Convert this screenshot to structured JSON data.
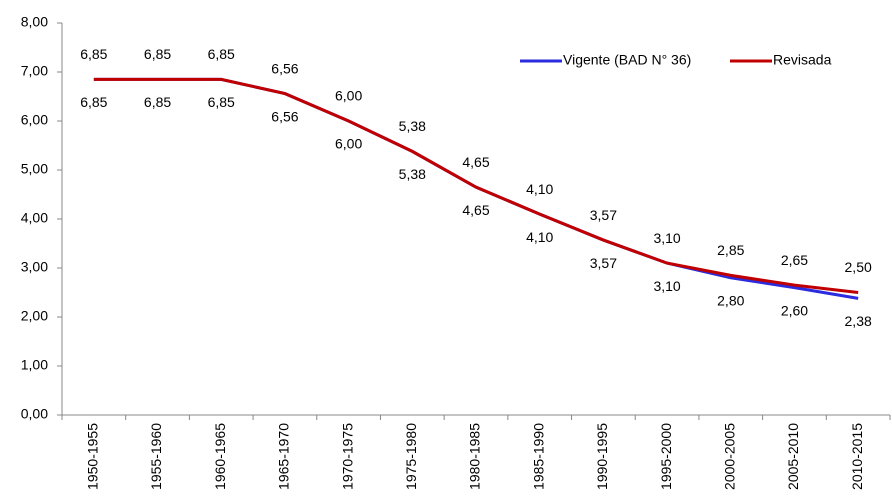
{
  "chart_data": {
    "type": "line",
    "categories": [
      "1950-1955",
      "1955-1960",
      "1960-1965",
      "1965-1970",
      "1970-1975",
      "1975-1980",
      "1980-1985",
      "1985-1990",
      "1990-1995",
      "1995-2000",
      "2000-2005",
      "2005-2010",
      "2010-2015"
    ],
    "series": [
      {
        "name": "Vigente (BAD N° 36)",
        "color": "#2b2be0",
        "values": [
          6.85,
          6.85,
          6.85,
          6.56,
          6.0,
          5.38,
          4.65,
          4.1,
          3.57,
          3.1,
          2.8,
          2.6,
          2.38
        ],
        "value_labels": [
          "6,85",
          "6,85",
          "6,85",
          "6,56",
          "6,00",
          "5,38",
          "4,65",
          "4,10",
          "3,57",
          "3,10",
          "2,80",
          "2,60",
          "2,38"
        ]
      },
      {
        "name": "Revisada",
        "color": "#c00000",
        "values": [
          6.85,
          6.85,
          6.85,
          6.56,
          6.0,
          5.38,
          4.65,
          4.1,
          3.57,
          3.1,
          2.85,
          2.65,
          2.5
        ],
        "value_labels": [
          "6,85",
          "6,85",
          "6,85",
          "6,56",
          "6,00",
          "5,38",
          "4,65",
          "4,10",
          "3,57",
          "3,10",
          "2,85",
          "2,65",
          "2,50"
        ]
      }
    ],
    "ylim": [
      0,
      8
    ],
    "yticks": [
      {
        "value": 0,
        "label": "0,00"
      },
      {
        "value": 1,
        "label": "1,00"
      },
      {
        "value": 2,
        "label": "2,00"
      },
      {
        "value": 3,
        "label": "3,00"
      },
      {
        "value": 4,
        "label": "4,00"
      },
      {
        "value": 5,
        "label": "5,00"
      },
      {
        "value": 6,
        "label": "6,00"
      },
      {
        "value": 7,
        "label": "7,00"
      },
      {
        "value": 8,
        "label": "8,00"
      }
    ],
    "legend": "upper right"
  }
}
